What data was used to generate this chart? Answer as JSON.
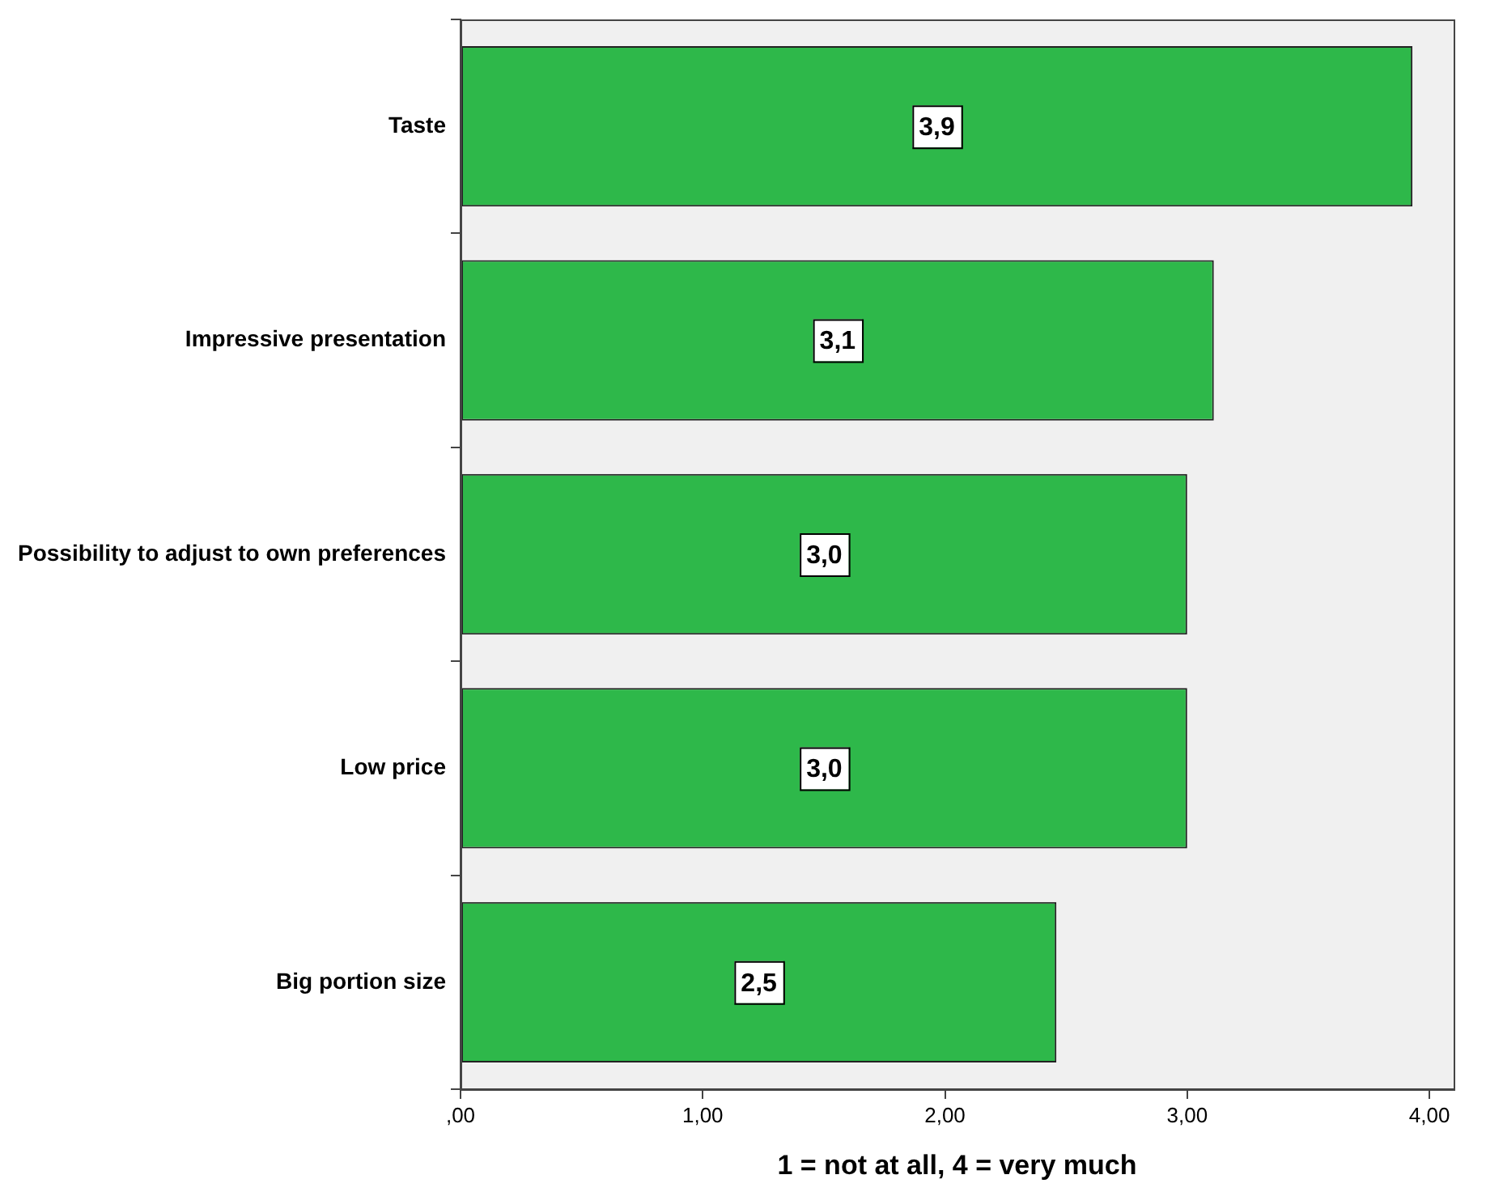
{
  "chart_data": {
    "type": "bar",
    "orientation": "horizontal",
    "xlabel": "1 = not at all, 4 = very much",
    "categories": [
      "Taste",
      "Impressive presentation",
      "Possibility to adjust to own preferences",
      "Low price",
      "Big portion size"
    ],
    "values": [
      3.93,
      3.11,
      3.0,
      3.0,
      2.46
    ],
    "value_labels": [
      "3,9",
      "3,1",
      "3,0",
      "3,0",
      "2,5"
    ],
    "color": "#2eb84a",
    "xlim": [
      0,
      4.1
    ],
    "xticks": [
      {
        "value": 0,
        "label": ",00"
      },
      {
        "value": 1,
        "label": "1,00"
      },
      {
        "value": 2,
        "label": "2,00"
      },
      {
        "value": 3,
        "label": "3,00"
      },
      {
        "value": 4,
        "label": "4,00"
      }
    ],
    "grid": false,
    "legend": false
  }
}
